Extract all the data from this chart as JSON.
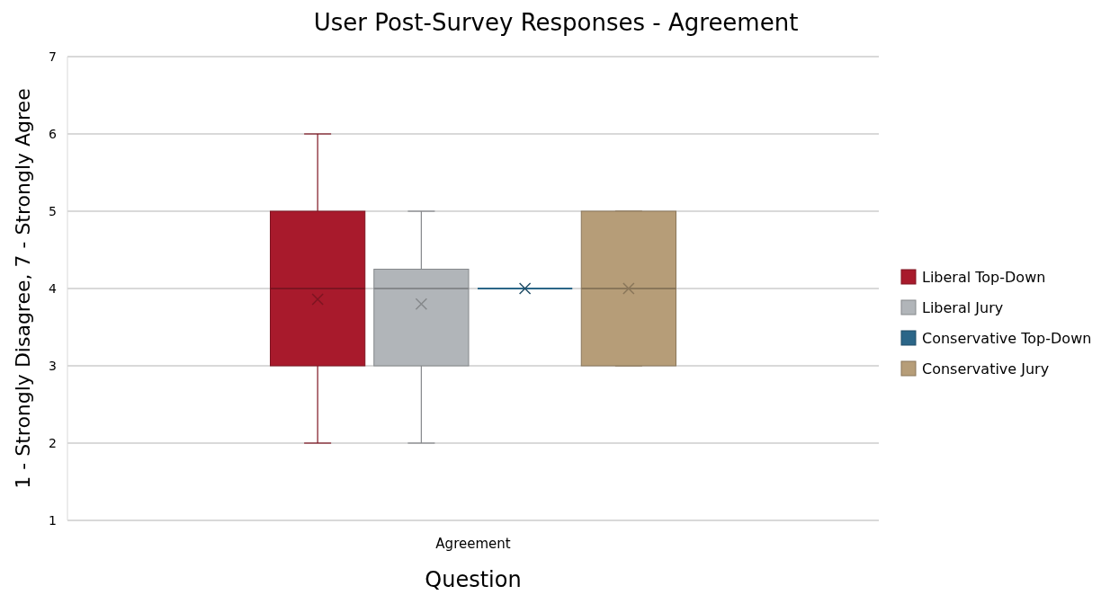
{
  "chart_data": {
    "type": "box",
    "title": "User Post-Survey Responses - Agreement",
    "xlabel": "Question",
    "ylabel": "1 - Strongly Disagree, 7 - Strongly Agree",
    "categories": [
      "Agreement"
    ],
    "series": [
      {
        "name": "Liberal Top-Down",
        "color": "#a81a2c",
        "boxes": [
          {
            "low": 2,
            "q1": 3,
            "median": 4,
            "q3": 5,
            "high": 6,
            "mean": 3.86
          }
        ]
      },
      {
        "name": "Liberal Jury",
        "color": "#b1b5b9",
        "boxes": [
          {
            "low": 2,
            "q1": 3,
            "median": 4,
            "q3": 4.25,
            "high": 5,
            "mean": 3.8
          }
        ]
      },
      {
        "name": "Conservative Top-Down",
        "color": "#2b6688",
        "boxes": [
          {
            "low": 4,
            "q1": 4,
            "median": 4,
            "q3": 4,
            "high": 4,
            "mean": 4
          }
        ]
      },
      {
        "name": "Conservative Jury",
        "color": "#b69d78",
        "boxes": [
          {
            "low": 3,
            "q1": 3,
            "median": 4,
            "q3": 5,
            "high": 5,
            "mean": 4
          }
        ]
      }
    ],
    "ylim": [
      1,
      7
    ],
    "yticks": [
      1,
      2,
      3,
      4,
      5,
      6,
      7
    ],
    "grid": "y",
    "legend": "right"
  }
}
